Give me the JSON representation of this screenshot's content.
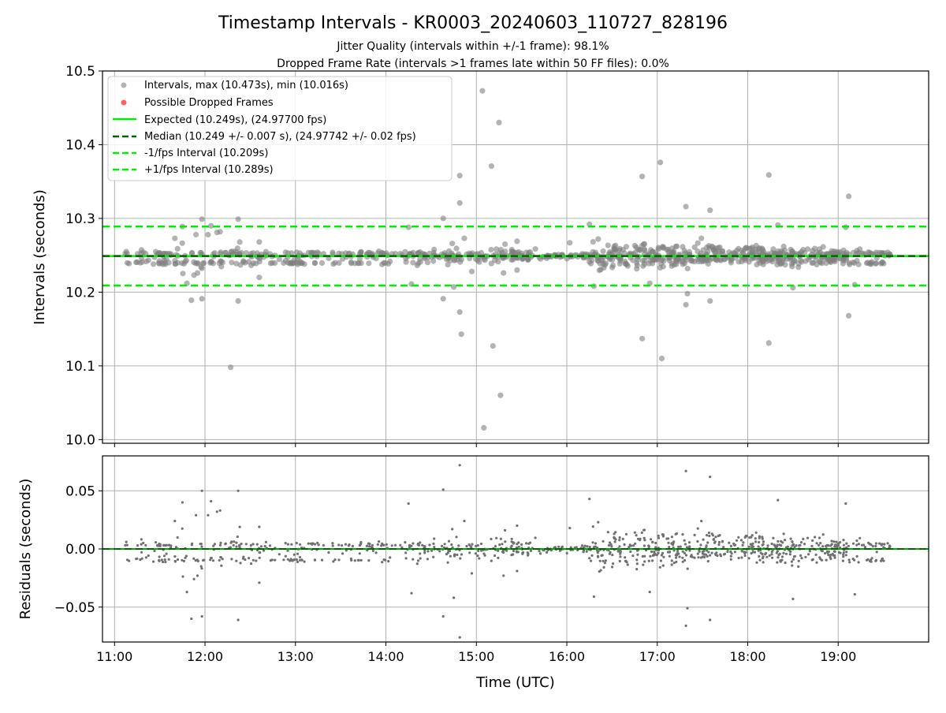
{
  "figure": {
    "title": "Timestamp Intervals - KR0003_20240603_110727_828196",
    "subtitle_1": "Jitter Quality (intervals within +/-1 frame): 98.1%",
    "subtitle_2": "Dropped Frame Rate (intervals >1 frames late within 50 FF files): 0.0%"
  },
  "colors": {
    "points": "#808080",
    "dropped": "#ff6060",
    "expected": "#00ee00",
    "median": "#006400",
    "interval": "#00ee00",
    "grid": "#b0b0b0",
    "residual_zero": "#00aa00"
  },
  "chart_data": [
    {
      "type": "scatter",
      "ylabel": "Intervals (seconds)",
      "xlim": [
        "10:52",
        "20:00"
      ],
      "ylim": [
        9.995,
        10.5
      ],
      "yticks": [
        "10.0",
        "10.1",
        "10.2",
        "10.3",
        "10.4",
        "10.5"
      ],
      "grid": true,
      "legend_position": "top-left",
      "legend": [
        "Intervals, max (10.473s), min (10.016s)",
        "Possible Dropped Frames",
        "Expected (10.249s), (24.97700 fps)",
        "Median (10.249 +/- 0.007 s), (24.97742 +/- 0.02 fps)",
        "-1/fps Interval (10.209s)",
        "+1/fps Interval (10.289s)"
      ],
      "reference_lines": {
        "expected": 10.249,
        "median": 10.249,
        "minus_1fps": 10.209,
        "plus_1fps": 10.289
      },
      "series": [
        {
          "name": "Intervals, max (10.473s), min (10.016s)",
          "segments": [
            {
              "start": "11:07",
              "end": "11:35",
              "spread": 0.012,
              "density": 40,
              "bimodal": true
            },
            {
              "start": "11:35",
              "end": "12:30",
              "spread": 0.018,
              "density": 70,
              "bimodal": true
            },
            {
              "start": "12:30",
              "end": "14:30",
              "spread": 0.006,
              "density": 150,
              "bimodal": true
            },
            {
              "start": "14:30",
              "end": "15:40",
              "spread": 0.014,
              "density": 110,
              "bimodal": false
            },
            {
              "start": "15:40",
              "end": "16:15",
              "spread": 0.006,
              "density": 45,
              "bimodal": false
            },
            {
              "start": "16:15",
              "end": "17:55",
              "spread": 0.026,
              "density": 260,
              "bimodal": false
            },
            {
              "start": "17:55",
              "end": "19:05",
              "spread": 0.02,
              "density": 200,
              "bimodal": false
            },
            {
              "start": "19:05",
              "end": "19:35",
              "spread": 0.01,
              "density": 50,
              "bimodal": true
            }
          ],
          "outliers": [
            {
              "t": "11:40",
              "v": 10.273
            },
            {
              "t": "11:45",
              "v": 10.289
            },
            {
              "t": "11:48",
              "v": 10.212
            },
            {
              "t": "11:51",
              "v": 10.189
            },
            {
              "t": "11:54",
              "v": 10.278
            },
            {
              "t": "11:55",
              "v": 10.226
            },
            {
              "t": "11:58",
              "v": 10.191
            },
            {
              "t": "11:58",
              "v": 10.299
            },
            {
              "t": "12:02",
              "v": 10.278
            },
            {
              "t": "12:04",
              "v": 10.29
            },
            {
              "t": "12:08",
              "v": 10.281
            },
            {
              "t": "12:10",
              "v": 10.282
            },
            {
              "t": "12:17",
              "v": 10.098
            },
            {
              "t": "12:22",
              "v": 10.299
            },
            {
              "t": "12:22",
              "v": 10.188
            },
            {
              "t": "12:36",
              "v": 10.268
            },
            {
              "t": "12:36",
              "v": 10.22
            },
            {
              "t": "14:15",
              "v": 10.288
            },
            {
              "t": "14:17",
              "v": 10.211
            },
            {
              "t": "14:38",
              "v": 10.3
            },
            {
              "t": "14:38",
              "v": 10.191
            },
            {
              "t": "14:44",
              "v": 10.266
            },
            {
              "t": "14:45",
              "v": 10.207
            },
            {
              "t": "14:49",
              "v": 10.358
            },
            {
              "t": "14:49",
              "v": 10.321
            },
            {
              "t": "14:49",
              "v": 10.173
            },
            {
              "t": "14:50",
              "v": 10.143
            },
            {
              "t": "14:52",
              "v": 10.273
            },
            {
              "t": "14:57",
              "v": 10.228
            },
            {
              "t": "15:04",
              "v": 10.473
            },
            {
              "t": "15:05",
              "v": 10.016
            },
            {
              "t": "15:10",
              "v": 10.371
            },
            {
              "t": "15:11",
              "v": 10.127
            },
            {
              "t": "15:15",
              "v": 10.43
            },
            {
              "t": "15:16",
              "v": 10.06
            },
            {
              "t": "15:18",
              "v": 10.226
            },
            {
              "t": "15:19",
              "v": 10.265
            },
            {
              "t": "15:27",
              "v": 10.269
            },
            {
              "t": "15:27",
              "v": 10.23
            },
            {
              "t": "16:02",
              "v": 10.267
            },
            {
              "t": "16:15",
              "v": 10.292
            },
            {
              "t": "16:18",
              "v": 10.208
            },
            {
              "t": "16:50",
              "v": 10.357
            },
            {
              "t": "16:50",
              "v": 10.137
            },
            {
              "t": "16:55",
              "v": 10.212
            },
            {
              "t": "17:02",
              "v": 10.376
            },
            {
              "t": "17:03",
              "v": 10.11
            },
            {
              "t": "17:19",
              "v": 10.316
            },
            {
              "t": "17:19",
              "v": 10.183
            },
            {
              "t": "17:20",
              "v": 10.198
            },
            {
              "t": "17:35",
              "v": 10.311
            },
            {
              "t": "17:35",
              "v": 10.188
            },
            {
              "t": "18:14",
              "v": 10.359
            },
            {
              "t": "18:14",
              "v": 10.131
            },
            {
              "t": "18:20",
              "v": 10.291
            },
            {
              "t": "18:30",
              "v": 10.206
            },
            {
              "t": "19:07",
              "v": 10.33
            },
            {
              "t": "19:07",
              "v": 10.168
            },
            {
              "t": "19:05",
              "v": 10.288
            },
            {
              "t": "19:11",
              "v": 10.21
            }
          ]
        },
        {
          "name": "Possible Dropped Frames",
          "points": []
        }
      ]
    },
    {
      "type": "scatter",
      "xlabel": "Time (UTC)",
      "ylabel": "Residuals (seconds)",
      "xlim": [
        "10:52",
        "20:00"
      ],
      "ylim": [
        -0.08,
        0.08
      ],
      "yticks": [
        "0.05",
        "0.00",
        "−0.05"
      ],
      "xticks": [
        "11:00",
        "12:00",
        "13:00",
        "14:00",
        "15:00",
        "16:00",
        "17:00",
        "18:00",
        "19:00"
      ],
      "grid": true,
      "reference_lines": {
        "zero": 0.0
      },
      "series": [
        {
          "name": "Residuals",
          "derived_from": "intervals minus median (10.249)"
        }
      ]
    }
  ]
}
